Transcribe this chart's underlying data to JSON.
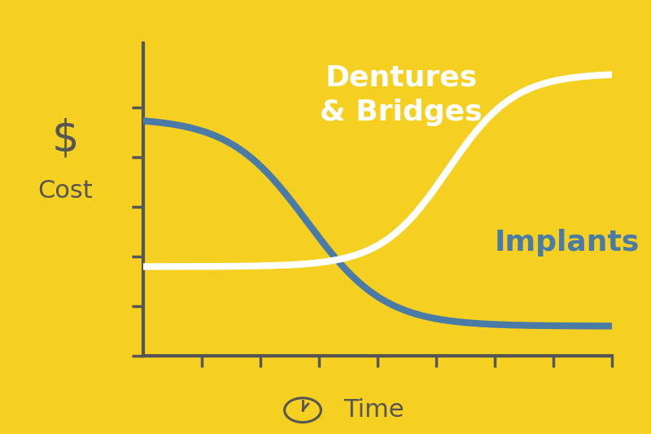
{
  "background_color": "#F5D020",
  "axis_color": "#555555",
  "implants_color": "#4A7BA7",
  "dentures_color": "#FFFFFF",
  "ylabel_dollar": "$",
  "ylabel_cost": "Cost",
  "xlabel_time": "Time",
  "dentures_label": "Dentures\n& Bridges",
  "implants_label": "Implants",
  "line_width": 6,
  "y_ticks_count": 6,
  "x_ticks_count": 8
}
